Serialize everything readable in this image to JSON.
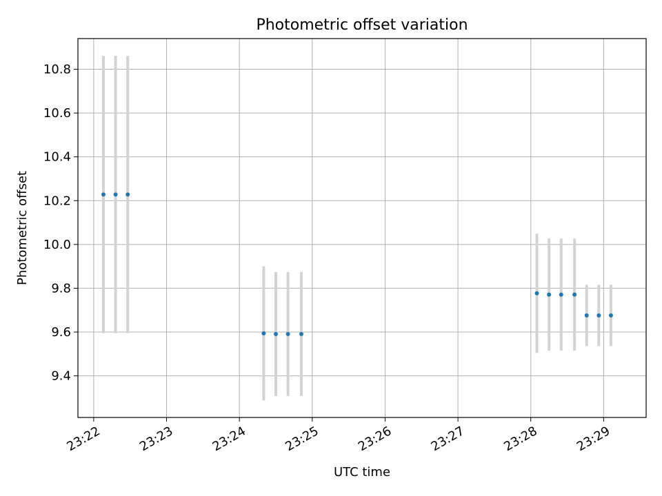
{
  "chart_data": {
    "type": "scatter",
    "title": "Photometric offset variation",
    "xlabel": "UTC time",
    "ylabel": "Photometric offset",
    "x_tick_labels": [
      "23:22",
      "23:23",
      "23:24",
      "23:25",
      "23:26",
      "23:27",
      "23:28",
      "23:29"
    ],
    "y_tick_labels": [
      "9.4",
      "9.6",
      "9.8",
      "10.0",
      "10.2",
      "10.4",
      "10.6",
      "10.8"
    ],
    "y_ticks": [
      9.4,
      9.6,
      9.8,
      10.0,
      10.2,
      10.4,
      10.6,
      10.8
    ],
    "xlim": [
      "23:21:47",
      "23:29:35"
    ],
    "ylim": [
      9.21,
      10.94
    ],
    "grid": true,
    "marker_color": "#1f77b4",
    "errorbar_color": "#d3d3d3",
    "points": [
      {
        "x": "23:22:08",
        "y": 10.228,
        "err": 0.633
      },
      {
        "x": "23:22:18",
        "y": 10.228,
        "err": 0.633
      },
      {
        "x": "23:22:28",
        "y": 10.228,
        "err": 0.633
      },
      {
        "x": "23:24:20",
        "y": 9.594,
        "err": 0.307
      },
      {
        "x": "23:24:30",
        "y": 9.591,
        "err": 0.283
      },
      {
        "x": "23:24:40",
        "y": 9.591,
        "err": 0.283
      },
      {
        "x": "23:24:51",
        "y": 9.591,
        "err": 0.283
      },
      {
        "x": "23:28:05",
        "y": 9.777,
        "err": 0.272
      },
      {
        "x": "23:28:15",
        "y": 9.771,
        "err": 0.256
      },
      {
        "x": "23:28:25",
        "y": 9.771,
        "err": 0.256
      },
      {
        "x": "23:28:36",
        "y": 9.771,
        "err": 0.256
      },
      {
        "x": "23:28:46",
        "y": 9.676,
        "err": 0.14
      },
      {
        "x": "23:28:56",
        "y": 9.676,
        "err": 0.14
      },
      {
        "x": "23:29:06",
        "y": 9.676,
        "err": 0.14
      }
    ]
  }
}
